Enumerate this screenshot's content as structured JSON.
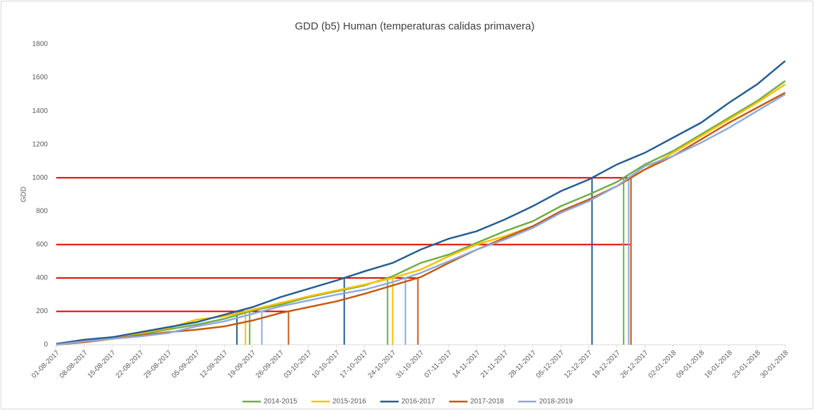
{
  "chart_data": {
    "type": "line",
    "title": "GDD (b5) Human (temperaturas calidas primavera)",
    "ylabel": "GDD",
    "categories": [
      "01-08-2017",
      "08-08-2017",
      "15-08-2017",
      "22-08-2017",
      "29-08-2017",
      "05-09-2017",
      "12-09-2017",
      "19-09-2017",
      "26-09-2017",
      "03-10-2017",
      "10-10-2017",
      "17-10-2017",
      "24-10-2017",
      "31-10-2017",
      "07-11-2017",
      "14-11-2017",
      "21-11-2017",
      "28-11-2017",
      "05-12-2017",
      "12-12-2017",
      "19-12-2017",
      "26-12-2017",
      "02-01-2018",
      "09-01-2018",
      "16-01-2018",
      "23-01-2018",
      "30-01-2018"
    ],
    "series": [
      {
        "name": "2014-2015",
        "color": "#70ad47",
        "values": [
          5,
          28,
          42,
          62,
          92,
          120,
          155,
          205,
          240,
          285,
          320,
          355,
          410,
          490,
          540,
          610,
          680,
          740,
          830,
          900,
          975,
          1080,
          1160,
          1260,
          1360,
          1460,
          1580
        ]
      },
      {
        "name": "2015-2016",
        "color": "#ffc000",
        "values": [
          5,
          25,
          45,
          70,
          100,
          150,
          170,
          210,
          250,
          290,
          325,
          360,
          400,
          450,
          530,
          600,
          650,
          710,
          790,
          870,
          950,
          1050,
          1150,
          1250,
          1350,
          1450,
          1560
        ]
      },
      {
        "name": "2016-2017",
        "color": "#255e91",
        "values": [
          5,
          30,
          45,
          75,
          105,
          135,
          180,
          225,
          285,
          335,
          385,
          440,
          490,
          570,
          635,
          680,
          750,
          830,
          920,
          990,
          1080,
          1150,
          1240,
          1330,
          1450,
          1560,
          1700
        ]
      },
      {
        "name": "2017-2018",
        "color": "#c55a11",
        "values": [
          0,
          15,
          35,
          55,
          75,
          90,
          110,
          145,
          190,
          225,
          260,
          305,
          355,
          405,
          490,
          570,
          640,
          710,
          800,
          870,
          950,
          1050,
          1130,
          1230,
          1330,
          1420,
          1510
        ]
      },
      {
        "name": "2018-2019",
        "color": "#8faadc",
        "values": [
          0,
          20,
          35,
          50,
          70,
          110,
          140,
          185,
          230,
          265,
          300,
          330,
          375,
          430,
          500,
          570,
          630,
          700,
          790,
          860,
          950,
          1070,
          1130,
          1210,
          1300,
          1400,
          1500
        ]
      }
    ],
    "reference_lines": [
      200,
      400,
      600,
      1000
    ],
    "reference_color": "#e00000",
    "drop_lines": [
      200,
      400,
      1000
    ],
    "ylim": [
      0,
      1800
    ],
    "yticks": [
      0,
      200,
      400,
      600,
      800,
      1000,
      1200,
      1400,
      1600,
      1800
    ],
    "legend": "bottom"
  }
}
